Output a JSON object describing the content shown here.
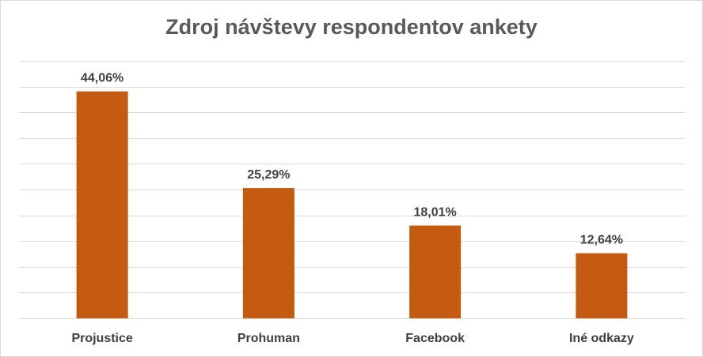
{
  "chart_data": {
    "type": "bar",
    "title": "Zdroj návštevy respondentov ankety",
    "categories": [
      "Projustice",
      "Prohuman",
      "Facebook",
      "Iné odkazy"
    ],
    "values": [
      44.06,
      25.29,
      18.01,
      12.64
    ],
    "value_labels": [
      "44,06%",
      "25,29%",
      "18,01%",
      "12,64%"
    ],
    "ylim": [
      0,
      50
    ],
    "grid": true,
    "bar_color": "#C55A11",
    "gridline_color": "#d9d9d9",
    "xlabel": "",
    "ylabel": ""
  }
}
